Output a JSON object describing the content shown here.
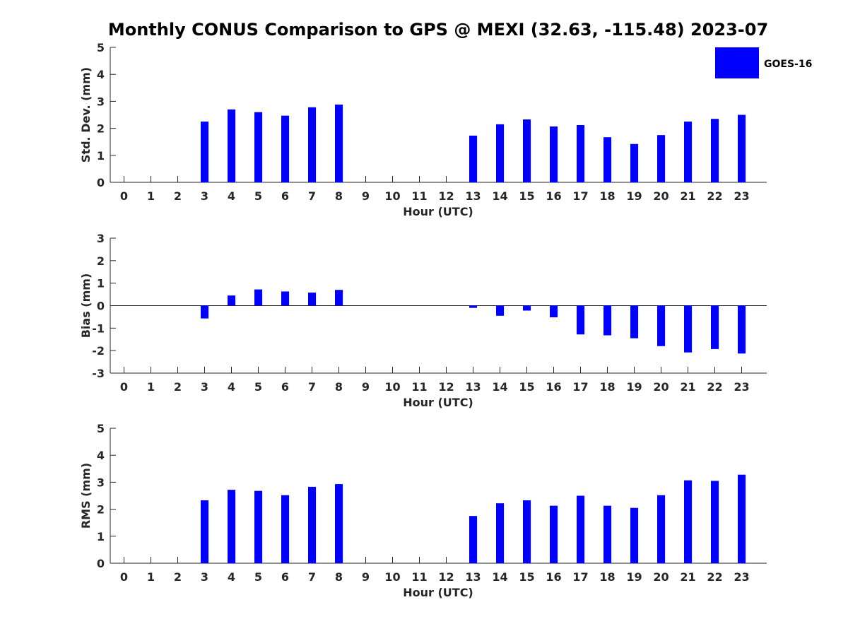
{
  "title": "Monthly CONUS Comparison to GPS @ MEXI (32.63, -115.48) 2023-07",
  "legend": {
    "label": "GOES-16",
    "color": "#0000ff"
  },
  "chart_data": [
    {
      "type": "bar",
      "ylabel": "Std. Dev. (mm)",
      "xlabel": "Hour (UTC)",
      "ylim": [
        0,
        5
      ],
      "yticks": [
        0,
        1,
        2,
        3,
        4,
        5
      ],
      "xticks": [
        0,
        1,
        2,
        3,
        4,
        5,
        6,
        7,
        8,
        9,
        10,
        11,
        12,
        13,
        14,
        15,
        16,
        17,
        18,
        19,
        20,
        21,
        22,
        23
      ],
      "series": [
        {
          "name": "GOES-16",
          "color": "#0000ff",
          "values": [
            null,
            null,
            null,
            2.25,
            2.7,
            2.6,
            2.47,
            2.78,
            2.88,
            null,
            null,
            null,
            null,
            1.73,
            2.15,
            2.33,
            2.07,
            2.12,
            1.67,
            1.42,
            1.75,
            2.25,
            2.35,
            2.5
          ]
        }
      ],
      "grid": false
    },
    {
      "type": "bar",
      "ylabel": "Bias (mm)",
      "xlabel": "Hour (UTC)",
      "ylim": [
        -3,
        3
      ],
      "yticks": [
        -3,
        -2,
        -1,
        0,
        1,
        2,
        3
      ],
      "xticks": [
        0,
        1,
        2,
        3,
        4,
        5,
        6,
        7,
        8,
        9,
        10,
        11,
        12,
        13,
        14,
        15,
        16,
        17,
        18,
        19,
        20,
        21,
        22,
        23
      ],
      "series": [
        {
          "name": "GOES-16",
          "color": "#0000ff",
          "values": [
            null,
            null,
            null,
            -0.57,
            0.45,
            0.72,
            0.63,
            0.58,
            0.7,
            null,
            null,
            null,
            null,
            -0.1,
            -0.45,
            -0.22,
            -0.52,
            -1.28,
            -1.32,
            -1.45,
            -1.8,
            -2.08,
            -1.93,
            -2.13
          ]
        }
      ],
      "grid": false
    },
    {
      "type": "bar",
      "ylabel": "RMS (mm)",
      "xlabel": "Hour (UTC)",
      "ylim": [
        0,
        5
      ],
      "yticks": [
        0,
        1,
        2,
        3,
        4,
        5
      ],
      "xticks": [
        0,
        1,
        2,
        3,
        4,
        5,
        6,
        7,
        8,
        9,
        10,
        11,
        12,
        13,
        14,
        15,
        16,
        17,
        18,
        19,
        20,
        21,
        22,
        23
      ],
      "series": [
        {
          "name": "GOES-16",
          "color": "#0000ff",
          "values": [
            null,
            null,
            null,
            2.33,
            2.72,
            2.68,
            2.52,
            2.83,
            2.93,
            null,
            null,
            null,
            null,
            1.75,
            2.22,
            2.33,
            2.13,
            2.5,
            2.13,
            2.05,
            2.52,
            3.07,
            3.05,
            3.28
          ]
        }
      ],
      "grid": false
    }
  ]
}
